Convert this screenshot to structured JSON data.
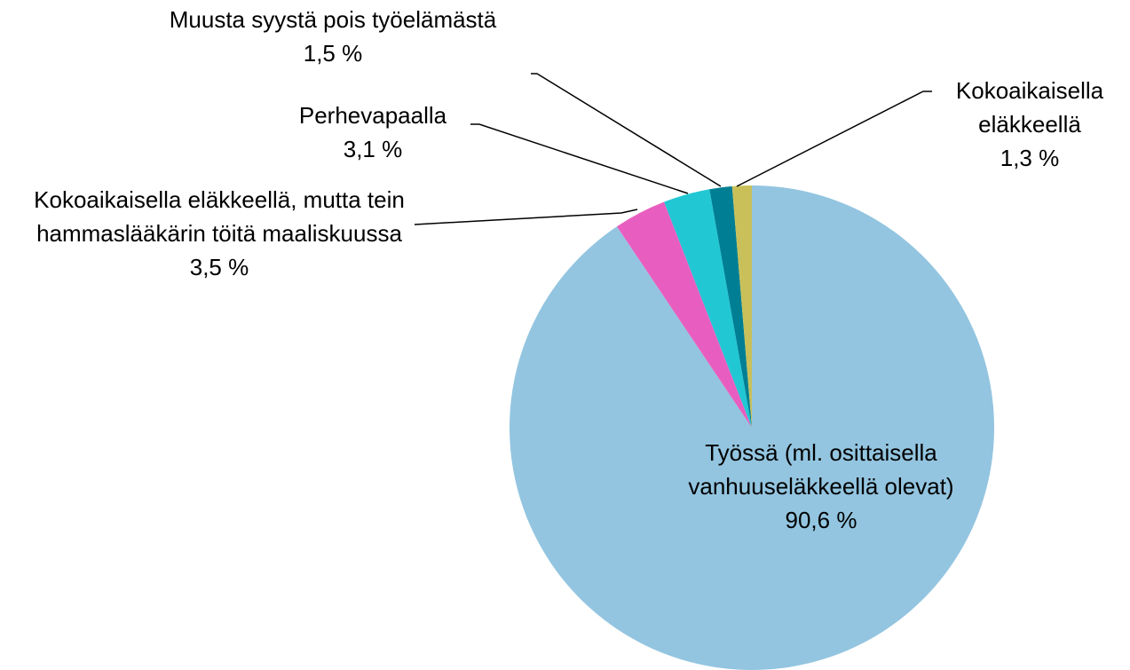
{
  "chart_data": {
    "type": "pie",
    "categories": [
      "Työssä (ml. osittaisella vanhuuseläkkeellä olevat)",
      "Kokoaikaisella eläkkeellä, mutta tein hammaslääkärin töitä maaliskuussa",
      "Perhevapaalla",
      "Muusta syystä pois työelämästä",
      "Kokoaikaisella eläkkeellä"
    ],
    "values": [
      90.6,
      3.5,
      3.1,
      1.5,
      1.3
    ],
    "value_labels": [
      "90,6 %",
      "3,5 %",
      "3,1 %",
      "1,5 %",
      "1,3 %"
    ],
    "colors": [
      "#93c5e0",
      "#e85ec0",
      "#22c7d4",
      "#007f94",
      "#c9c05a"
    ]
  }
}
